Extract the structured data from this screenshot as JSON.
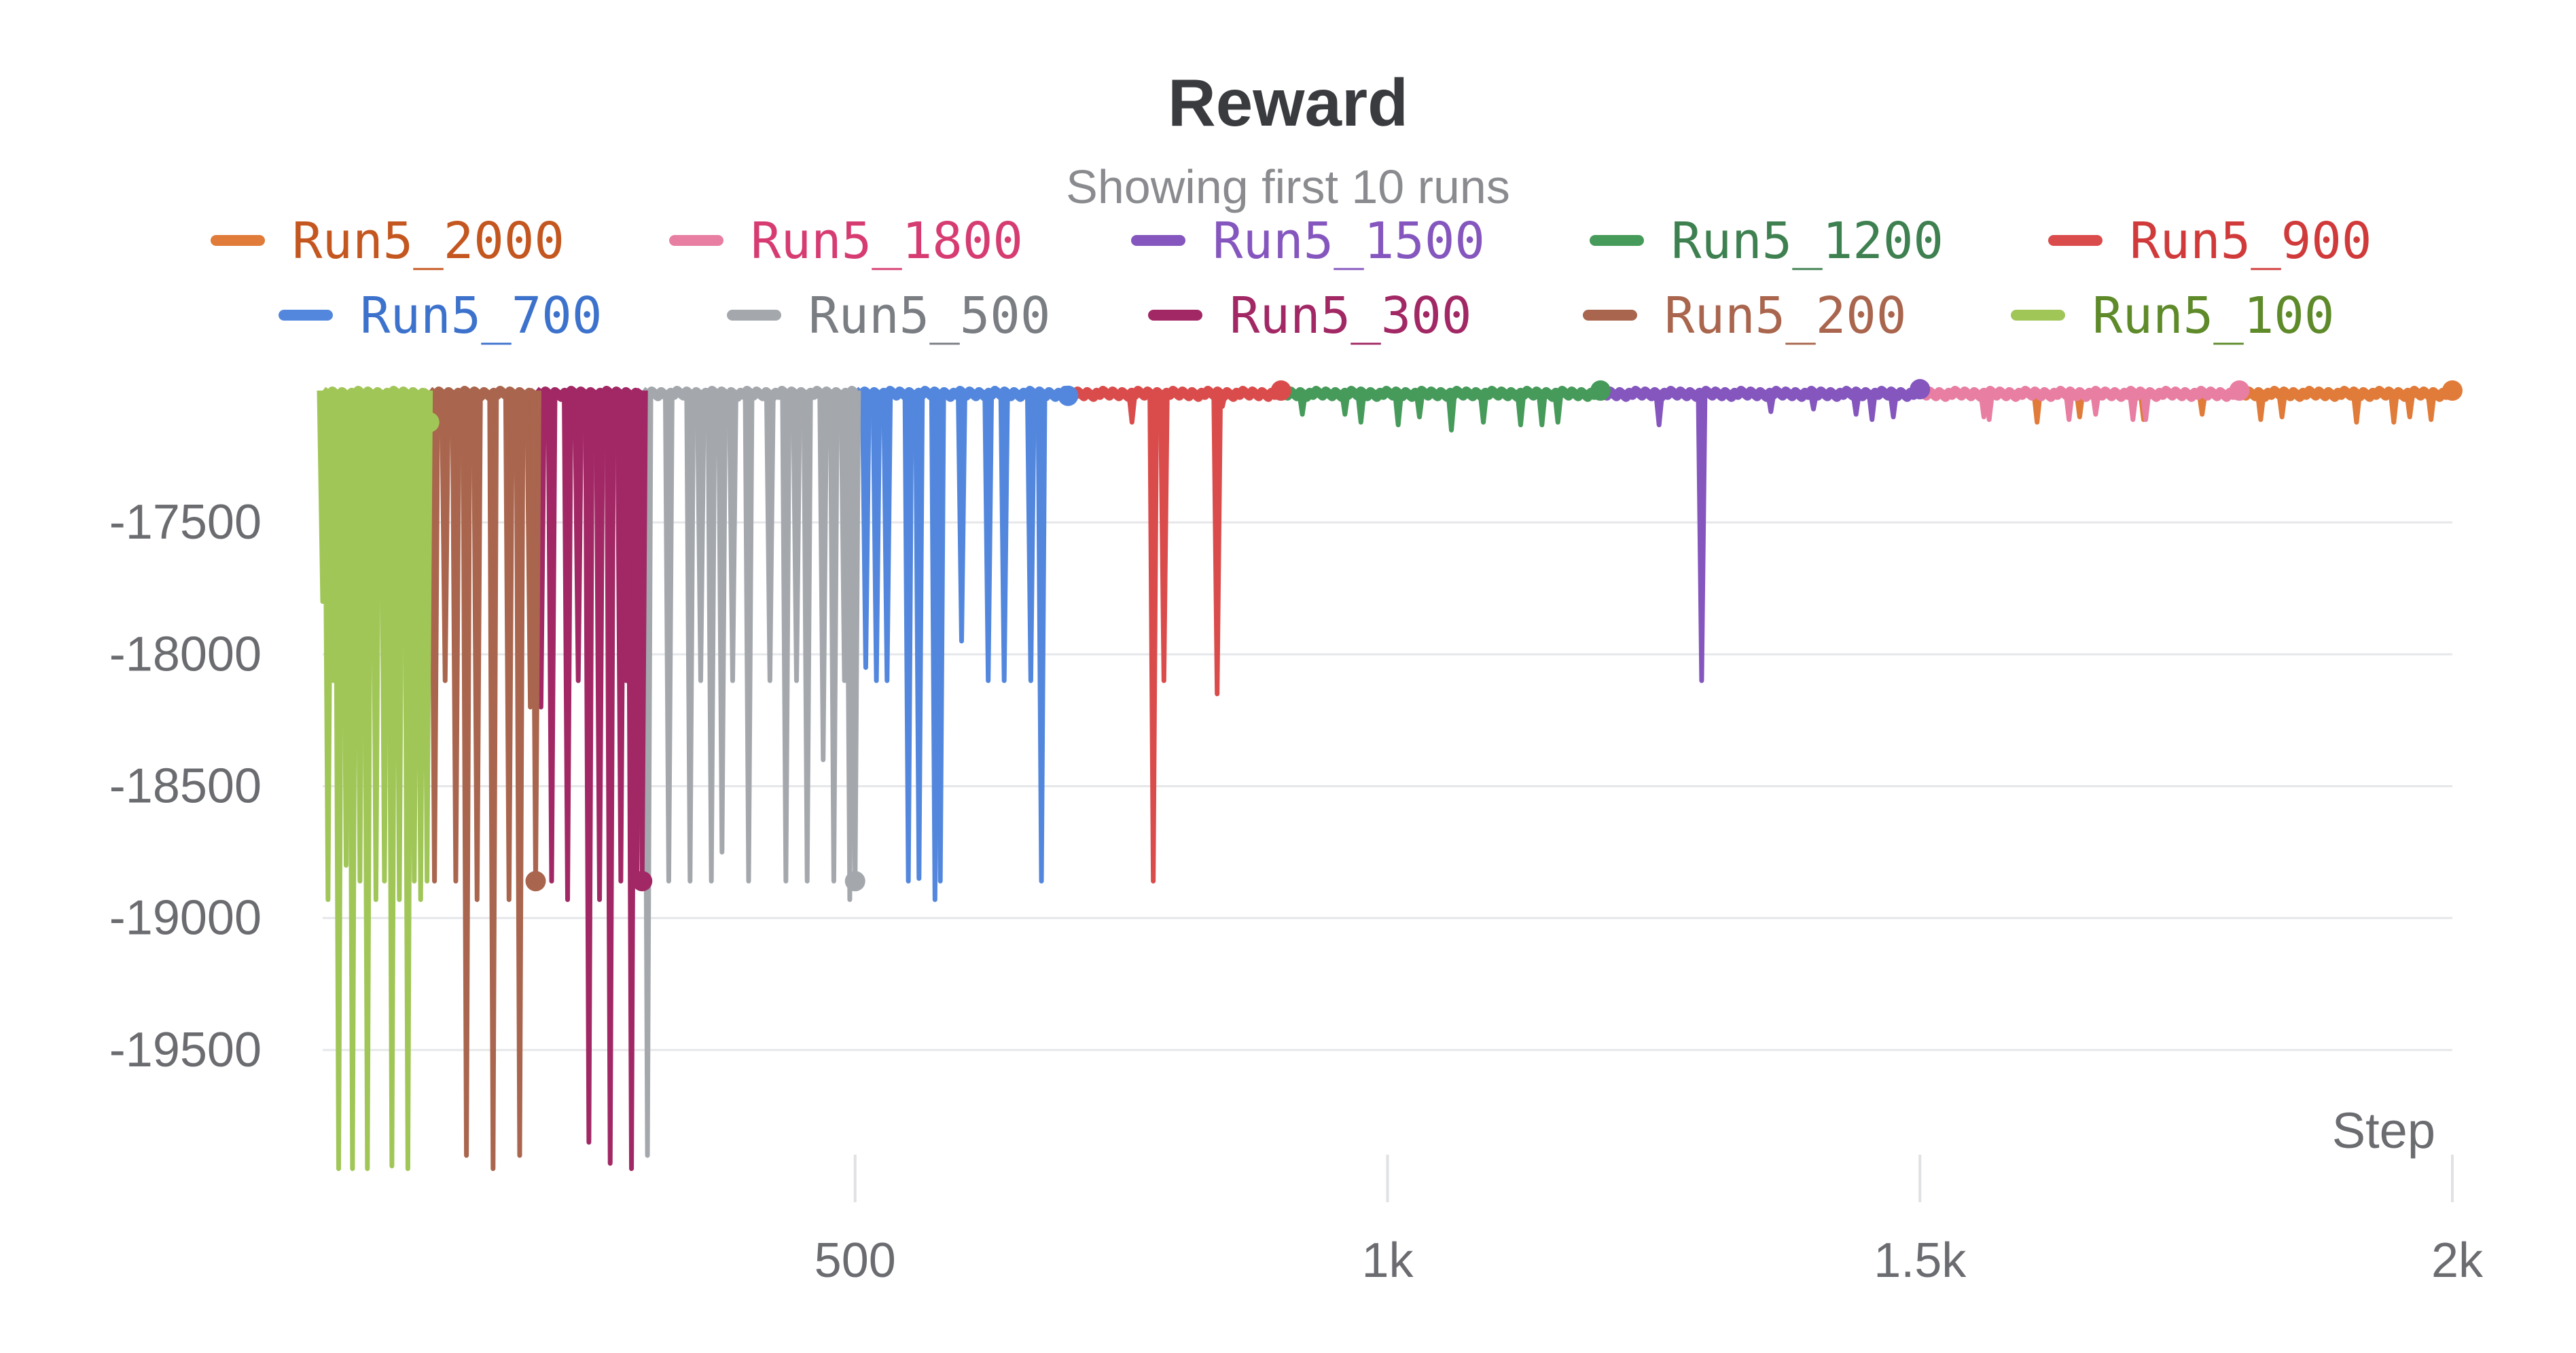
{
  "chart_data": {
    "type": "line",
    "title": "Reward",
    "subtitle": "Showing first 10 runs",
    "xlabel": "Step",
    "ylabel": "",
    "xlim": [
      0,
      2000
    ],
    "ylim": [
      -20000,
      -17000
    ],
    "x_ticks": [
      {
        "value": 500,
        "label": "500"
      },
      {
        "value": 1000,
        "label": "1k"
      },
      {
        "value": 1500,
        "label": "1.5k"
      },
      {
        "value": 2000,
        "label": "2k"
      }
    ],
    "y_ticks": [
      {
        "value": -17500,
        "label": "-17500"
      },
      {
        "value": -18000,
        "label": "-18000"
      },
      {
        "value": -18500,
        "label": "-18500"
      },
      {
        "value": -19000,
        "label": "-19000"
      },
      {
        "value": -19500,
        "label": "-19500"
      }
    ],
    "grid": true,
    "legend_position": "top",
    "baseline": -17000,
    "series": [
      {
        "name": "Run5_2000",
        "color": "#e07b39",
        "text_color": "#c4561f",
        "x_end": 2000,
        "end_y": -17000,
        "dips": [
          [
            1610,
            -17120
          ],
          [
            1650,
            -17100
          ],
          [
            1710,
            -17110
          ],
          [
            1765,
            -17090
          ],
          [
            1820,
            -17110
          ],
          [
            1840,
            -17100
          ],
          [
            1910,
            -17120
          ],
          [
            1945,
            -17120
          ],
          [
            1960,
            -17100
          ],
          [
            1980,
            -17110
          ]
        ]
      },
      {
        "name": "Run5_1800",
        "color": "#e87ea1",
        "text_color": "#d63c72",
        "x_end": 1800,
        "end_y": -17000,
        "dips": [
          [
            1560,
            -17100
          ],
          [
            1565,
            -17110
          ],
          [
            1640,
            -17110
          ],
          [
            1665,
            -17090
          ],
          [
            1700,
            -17110
          ],
          [
            1712,
            -17110
          ]
        ]
      },
      {
        "name": "Run5_1500",
        "color": "#8456be",
        "text_color": "#8456be",
        "x_end": 1500,
        "end_y": -16995,
        "dips": [
          [
            1255,
            -17130
          ],
          [
            1295,
            -18100
          ],
          [
            1360,
            -17080
          ],
          [
            1400,
            -17070
          ],
          [
            1440,
            -17090
          ],
          [
            1455,
            -17110
          ],
          [
            1475,
            -17100
          ]
        ]
      },
      {
        "name": "Run5_1200",
        "color": "#469a5a",
        "text_color": "#3e8050",
        "x_end": 1200,
        "end_y": -17000,
        "dips": [
          [
            920,
            -17090
          ],
          [
            960,
            -17090
          ],
          [
            975,
            -17120
          ],
          [
            1010,
            -17130
          ],
          [
            1030,
            -17100
          ],
          [
            1060,
            -17150
          ],
          [
            1090,
            -17120
          ],
          [
            1125,
            -17130
          ],
          [
            1145,
            -17130
          ],
          [
            1160,
            -17120
          ]
        ]
      },
      {
        "name": "Run5_900",
        "color": "#da4c4c",
        "text_color": "#d03a3a",
        "x_end": 900,
        "end_y": -17000,
        "dips": [
          [
            760,
            -17120
          ],
          [
            780,
            -18860
          ],
          [
            790,
            -18100
          ],
          [
            840,
            -18150
          ],
          [
            845,
            -17060
          ]
        ]
      },
      {
        "name": "Run5_700",
        "color": "#5387dd",
        "text_color": "#3d72cc",
        "x_end": 700,
        "end_y": -17020,
        "dips": [
          [
            510,
            -18050
          ],
          [
            520,
            -18100
          ],
          [
            530,
            -18100
          ],
          [
            550,
            -18860
          ],
          [
            560,
            -18850
          ],
          [
            575,
            -18930
          ],
          [
            580,
            -18860
          ],
          [
            600,
            -17950
          ],
          [
            625,
            -18100
          ],
          [
            640,
            -18100
          ],
          [
            665,
            -18100
          ],
          [
            675,
            -18860
          ],
          [
            690,
            -17030
          ]
        ]
      },
      {
        "name": "Run5_500",
        "color": "#a4a8ad",
        "text_color": "#7a7d82",
        "x_end": 500,
        "end_y": -18860,
        "dips": [
          [
            305,
            -19900
          ],
          [
            325,
            -18860
          ],
          [
            345,
            -18860
          ],
          [
            355,
            -18100
          ],
          [
            365,
            -18860
          ],
          [
            375,
            -18750
          ],
          [
            385,
            -18100
          ],
          [
            400,
            -18860
          ],
          [
            420,
            -18100
          ],
          [
            435,
            -18860
          ],
          [
            445,
            -18100
          ],
          [
            455,
            -18860
          ],
          [
            470,
            -18400
          ],
          [
            480,
            -18860
          ],
          [
            490,
            -18100
          ],
          [
            495,
            -18930
          ],
          [
            500,
            -18860
          ]
        ]
      },
      {
        "name": "Run5_300",
        "color": "#a12864",
        "text_color": "#a12864",
        "x_end": 300,
        "end_y": -18860,
        "dips": [
          [
            205,
            -18200
          ],
          [
            215,
            -18860
          ],
          [
            230,
            -18930
          ],
          [
            240,
            -18100
          ],
          [
            250,
            -19850
          ],
          [
            260,
            -18930
          ],
          [
            270,
            -19930
          ],
          [
            280,
            -18860
          ],
          [
            285,
            -18100
          ],
          [
            290,
            -19950
          ],
          [
            295,
            -18860
          ],
          [
            300,
            -18860
          ]
        ]
      },
      {
        "name": "Run5_200",
        "color": "#a9654d",
        "text_color": "#a9654d",
        "x_end": 200,
        "end_y": -18860,
        "dips": [
          [
            105,
            -18860
          ],
          [
            115,
            -18100
          ],
          [
            125,
            -18860
          ],
          [
            135,
            -19900
          ],
          [
            145,
            -18930
          ],
          [
            160,
            -19950
          ],
          [
            175,
            -18930
          ],
          [
            185,
            -19900
          ],
          [
            195,
            -18200
          ],
          [
            200,
            -18860
          ]
        ]
      },
      {
        "name": "Run5_100",
        "color": "#a1c658",
        "text_color": "#5e8a2a",
        "x_end": 100,
        "end_y": -17120,
        "dips": [
          [
            0,
            -17800
          ],
          [
            5,
            -18930
          ],
          [
            10,
            -18100
          ],
          [
            15,
            -19950
          ],
          [
            22,
            -18800
          ],
          [
            28,
            -19950
          ],
          [
            35,
            -18860
          ],
          [
            42,
            -19950
          ],
          [
            50,
            -18930
          ],
          [
            58,
            -18860
          ],
          [
            65,
            -19940
          ],
          [
            72,
            -18930
          ],
          [
            80,
            -19950
          ],
          [
            86,
            -18860
          ],
          [
            92,
            -18930
          ],
          [
            98,
            -18860
          ]
        ]
      }
    ]
  }
}
